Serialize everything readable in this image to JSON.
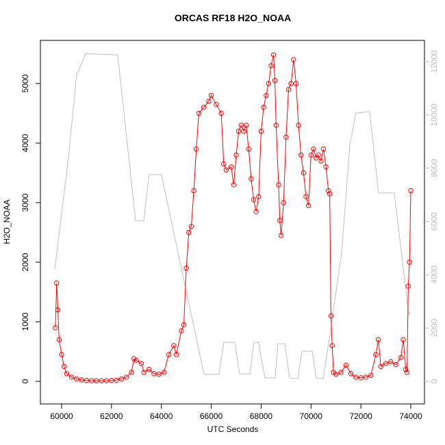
{
  "chart_data": {
    "type": "line",
    "title": "ORCAS RF18 H2O_NOAA",
    "x_label": "UTC Seconds",
    "y_label": "H2O_NOAA",
    "xlim": [
      59149,
      74549
    ],
    "xticks": [
      60000,
      62000,
      64000,
      66000,
      68000,
      70000,
      72000,
      74000
    ],
    "ylim": [
      -379,
      5724
    ],
    "yticks": [
      0,
      1000,
      2000,
      3000,
      4000,
      5000
    ],
    "y2lim": [
      -848,
      12797
    ],
    "y2ticks": [
      0,
      2000,
      4000,
      6000,
      8000,
      10000,
      12000
    ],
    "series": [
      {
        "color": "#ff0000",
        "marker": "circle",
        "x": [
          59750,
          59800,
          59850,
          59900,
          60000,
          60100,
          60200,
          60400,
          60600,
          60800,
          61000,
          61200,
          61400,
          61600,
          61800,
          62000,
          62200,
          62400,
          62600,
          62800,
          62900,
          63000,
          63200,
          63300,
          63500,
          63700,
          63900,
          64100,
          64300,
          64500,
          64600,
          64800,
          64900,
          65000,
          65100,
          65200,
          65300,
          65400,
          65500,
          65700,
          65900,
          66000,
          66200,
          66400,
          66500,
          66600,
          66800,
          66900,
          67000,
          67100,
          67200,
          67300,
          67400,
          67500,
          67600,
          67700,
          67800,
          67900,
          68000,
          68100,
          68200,
          68300,
          68400,
          68500,
          68550,
          68600,
          68700,
          68750,
          68800,
          68900,
          69000,
          69100,
          69200,
          69300,
          69400,
          69500,
          69600,
          69700,
          69800,
          69900,
          70000,
          70100,
          70200,
          70300,
          70400,
          70500,
          70600,
          70700,
          70750,
          70800,
          70850,
          70900,
          71000,
          71200,
          71400,
          71600,
          71800,
          72000,
          72200,
          72400,
          72600,
          72700,
          72800,
          73000,
          73200,
          73400,
          73600,
          73700,
          73800,
          73850,
          73900,
          73950,
          74000
        ],
        "values": [
          900,
          1650,
          1200,
          700,
          450,
          250,
          130,
          70,
          40,
          25,
          15,
          10,
          10,
          10,
          10,
          15,
          20,
          40,
          70,
          150,
          380,
          350,
          300,
          150,
          200,
          130,
          120,
          150,
          450,
          600,
          450,
          850,
          950,
          1900,
          2500,
          2600,
          3200,
          3900,
          4500,
          4600,
          4700,
          4800,
          4650,
          4500,
          3650,
          3550,
          3600,
          3300,
          3800,
          4200,
          4300,
          4200,
          4300,
          3900,
          3400,
          3050,
          2850,
          3100,
          4200,
          4600,
          4800,
          5000,
          5300,
          5480,
          5050,
          4300,
          3300,
          2700,
          2450,
          3000,
          4100,
          4900,
          5000,
          5400,
          5000,
          4300,
          3800,
          3500,
          3100,
          2950,
          3800,
          3900,
          3750,
          3800,
          3700,
          3900,
          3600,
          3200,
          3150,
          1100,
          600,
          150,
          120,
          150,
          270,
          130,
          70,
          60,
          70,
          100,
          450,
          700,
          250,
          300,
          330,
          280,
          400,
          700,
          200,
          150,
          1600,
          2000,
          3200
        ]
      },
      {
        "color": "#bebebe",
        "axis": "y2",
        "x": [
          59725,
          60275,
          60600,
          60960,
          62250,
          62965,
          63290,
          63510,
          64000,
          65710,
          66310,
          66500,
          66945,
          67135,
          67550,
          67710,
          67900,
          68150,
          68560,
          68670,
          68950,
          69140,
          69470,
          69635,
          70050,
          70210,
          70490,
          70710,
          71225,
          71560,
          71800,
          72350,
          72710,
          73340,
          73920,
          74000
        ],
        "values": [
          4200,
          8400,
          11490,
          12300,
          12250,
          6040,
          6010,
          7760,
          7760,
          260,
          260,
          1460,
          1460,
          280,
          280,
          1460,
          1460,
          130,
          130,
          1410,
          1410,
          130,
          100,
          1130,
          1130,
          130,
          100,
          1460,
          4800,
          8900,
          10070,
          10120,
          7070,
          7070,
          2500,
          2600
        ]
      }
    ]
  }
}
